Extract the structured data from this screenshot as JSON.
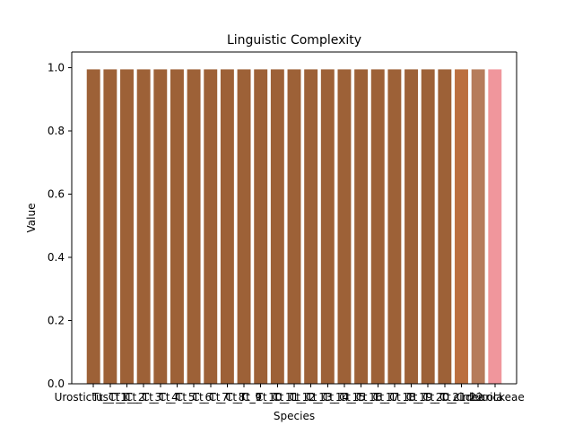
{
  "chart_data": {
    "type": "bar",
    "title": "Linguistic Complexity",
    "xlabel": "Species",
    "ylabel": "Value",
    "ylim": [
      0,
      1.05
    ],
    "yticks": [
      "0.0",
      "0.2",
      "0.4",
      "0.6",
      "0.8",
      "1.0"
    ],
    "grid": false,
    "categories": [
      "Urostictus_T1_",
      "Tt_C_1",
      "Tt_C_2",
      "Tt_C_3",
      "Tt_C_4",
      "Tt_C_5",
      "Tt_C_6",
      "Tt_C_7",
      "Tt_C_8",
      "Tt_C_9",
      "Tt_C_10",
      "Tt_C_11",
      "Tt_C_12",
      "Tt_C_13",
      "Tt_C_14",
      "Tt_C_15",
      "Tt_C_16",
      "Tt_C_17",
      "Tt_C_18",
      "Tt_C_19",
      "Tt_C_20",
      "Tt_C_21",
      "Tt_C_22",
      "cirrhicola",
      "dearickeae"
    ],
    "values": [
      0.995,
      0.995,
      0.995,
      0.995,
      0.995,
      0.995,
      0.995,
      0.995,
      0.995,
      0.995,
      0.995,
      0.995,
      0.995,
      0.995,
      0.995,
      0.995,
      0.995,
      0.995,
      0.995,
      0.995,
      0.995,
      0.995,
      0.995,
      0.995,
      0.995
    ],
    "colors": [
      "#9d6137",
      "#9d6137",
      "#9d6137",
      "#9d6137",
      "#9d6137",
      "#9d6137",
      "#9d6137",
      "#9d6137",
      "#9d6137",
      "#9d6137",
      "#9d6137",
      "#9d6137",
      "#9d6137",
      "#9d6137",
      "#9d6137",
      "#9d6137",
      "#9d6137",
      "#9d6137",
      "#9d6137",
      "#9d6137",
      "#9d6137",
      "#9d6137",
      "#bb6f3f",
      "#b67c5b",
      "#f0969c"
    ]
  }
}
